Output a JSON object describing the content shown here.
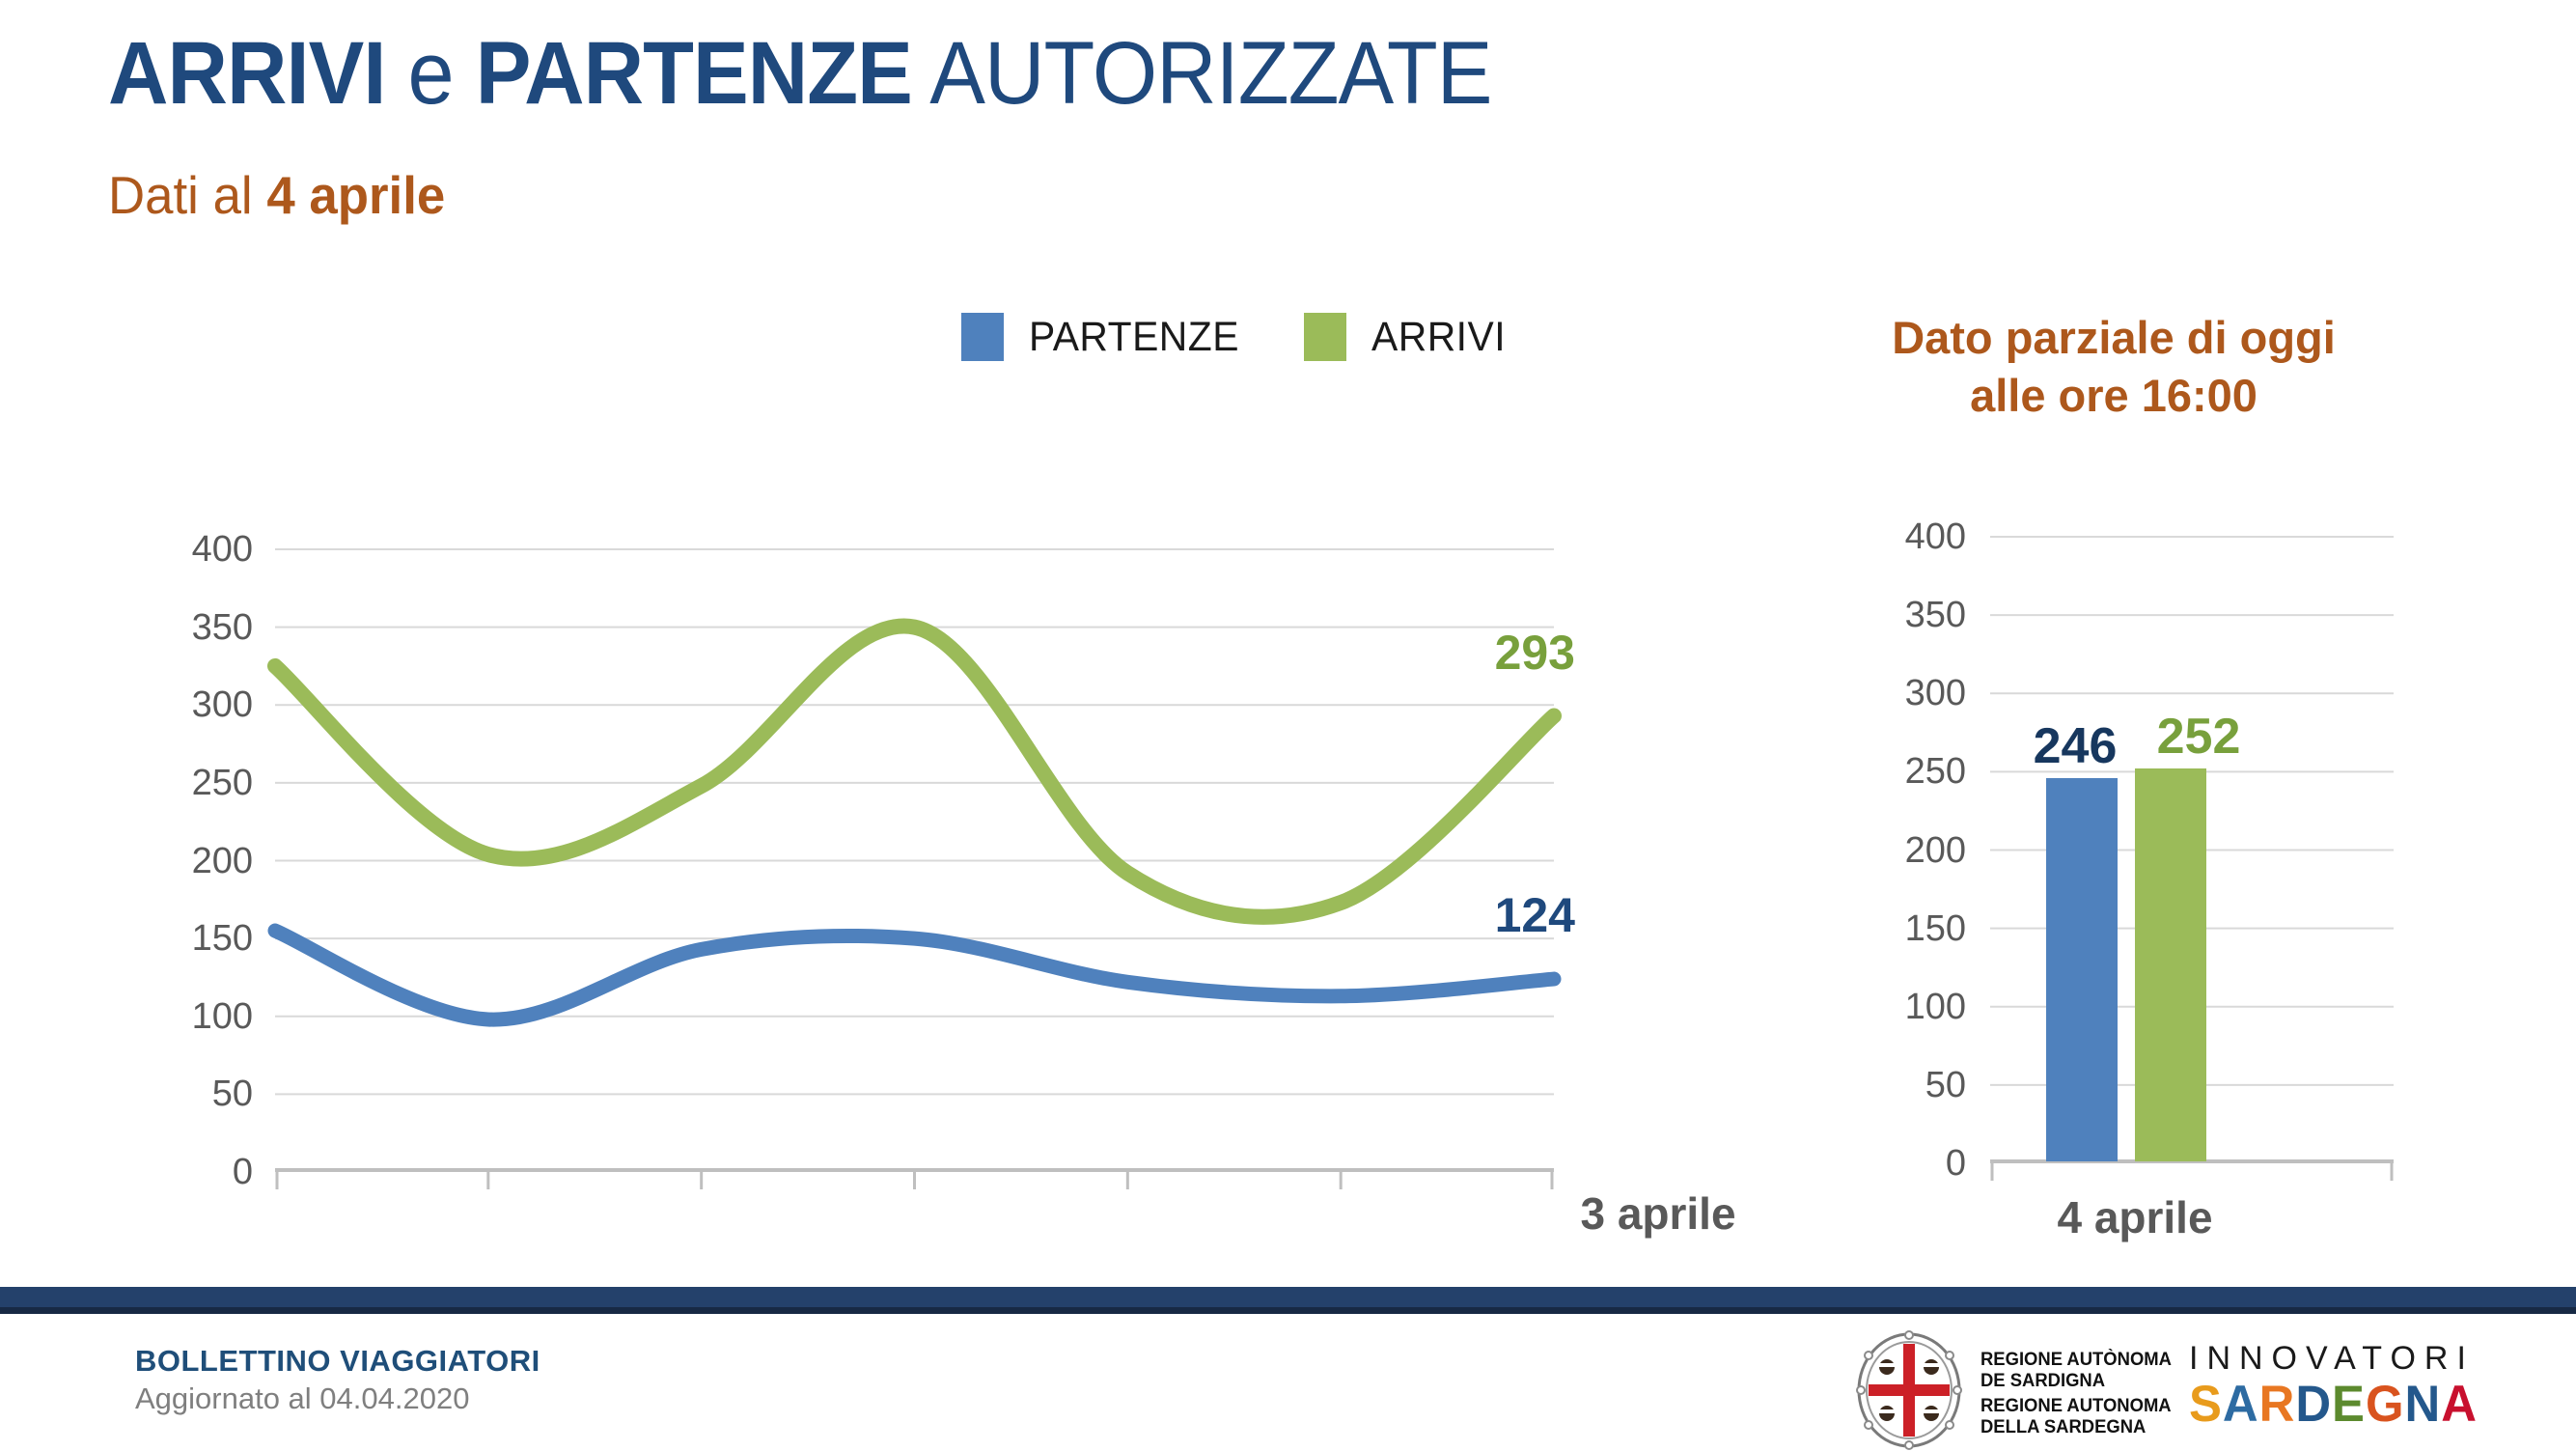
{
  "title": {
    "bold1": "ARRIVI",
    "sep": " e ",
    "bold2": "PARTENZE",
    "regular": " AUTORIZZATE"
  },
  "subtitle": {
    "prefix": "Dati al ",
    "bold": "4 aprile"
  },
  "legend": {
    "items": [
      {
        "label": "PARTENZE",
        "color": "#4F81BD"
      },
      {
        "label": "ARRIVI",
        "color": "#9BBB59"
      }
    ]
  },
  "right_header": {
    "line1": "Dato parziale di oggi",
    "line2": "alle ore 16:00"
  },
  "chart_data": [
    {
      "type": "line",
      "name": "arrivi-partenze-autorizzate-per-giorno",
      "x_tick_count": 7,
      "x_last_label": "3 aprile",
      "ylim": [
        0,
        400
      ],
      "yticks": [
        400,
        350,
        300,
        250,
        200,
        150,
        100,
        50,
        0
      ],
      "grid": true,
      "legend_position": "top-center",
      "series": [
        {
          "name": "PARTENZE",
          "color": "#4F81BD",
          "values": [
            155,
            98,
            143,
            150,
            122,
            113,
            124
          ],
          "end_label": "124",
          "label_color": "#1F497D"
        },
        {
          "name": "ARRIVI",
          "color": "#9BBB59",
          "values": [
            325,
            204,
            248,
            350,
            192,
            173,
            293
          ],
          "end_label": "293",
          "label_color": "#78A03C"
        }
      ]
    },
    {
      "type": "bar",
      "name": "dato-parziale-di-oggi",
      "categories": [
        "4 aprile"
      ],
      "ylim": [
        0,
        400
      ],
      "yticks": [
        400,
        350,
        300,
        250,
        200,
        150,
        100,
        50,
        0
      ],
      "grid": true,
      "series": [
        {
          "name": "PARTENZE",
          "color": "#4F81BD",
          "values": [
            246
          ],
          "label_color": "#17375E"
        },
        {
          "name": "ARRIVI",
          "color": "#9BBB59",
          "values": [
            252
          ],
          "label_color": "#78A03C"
        }
      ]
    }
  ],
  "footer": {
    "bulletin_title": "BOLLETTINO VIAGGIATORI",
    "updated": "Aggiornato al 04.04.2020",
    "region_lines_sc": [
      "REGIONE AUTÒNOMA",
      "DE SARDIGNA"
    ],
    "region_lines_it": [
      "REGIONE AUTONOMA",
      "DELLA SARDEGNA"
    ],
    "innovatori": "INNOVATORI",
    "sardegna_letters": [
      {
        "ch": "S",
        "color": "#E89B1C"
      },
      {
        "ch": "A",
        "color": "#2D6BA2"
      },
      {
        "ch": "R",
        "color": "#E87722"
      },
      {
        "ch": "D",
        "color": "#24588C"
      },
      {
        "ch": "E",
        "color": "#5C8A2E"
      },
      {
        "ch": "G",
        "color": "#D9531E"
      },
      {
        "ch": "N",
        "color": "#24588C"
      },
      {
        "ch": "A",
        "color": "#C8102E"
      }
    ]
  },
  "colors": {
    "accent_navy": "#1F497D",
    "accent_orange": "#AD581C",
    "axis_text": "#595959",
    "gridline": "#D9D9D9",
    "axis_line": "#BFBFBF",
    "footer_bar": "#24416B",
    "chart_blue": "#4F81BD",
    "chart_green": "#9BBB59",
    "cross_red": "#CC2027"
  }
}
